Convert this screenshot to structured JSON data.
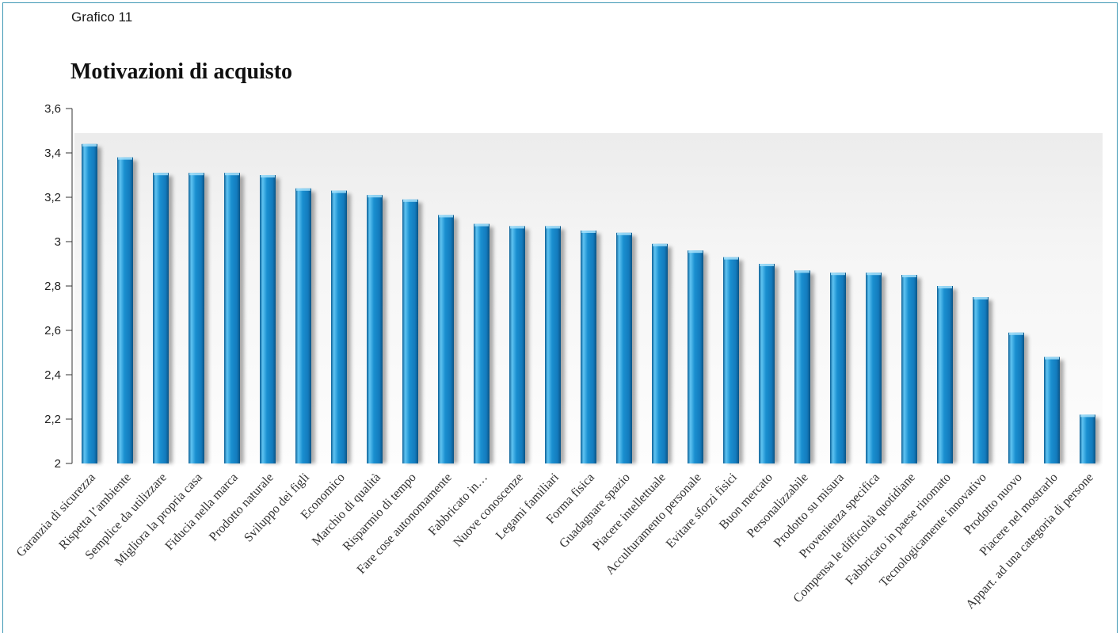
{
  "header": {
    "figure_label": "Grafico 11"
  },
  "chart_data": {
    "type": "bar",
    "title": "Motivazioni di acquisto",
    "ylim": [
      2,
      3.6
    ],
    "yticks": [
      2,
      2.2,
      2.4,
      2.6,
      2.8,
      3,
      3.2,
      3.4,
      3.6
    ],
    "ytick_labels": [
      "2",
      "2,2",
      "2,4",
      "2,6",
      "2,8",
      "3",
      "3,2",
      "3,4",
      "3,6"
    ],
    "grid": false,
    "legend": false,
    "bar_color": "#1a8fd0",
    "categories": [
      "Garanzia di sicurezza",
      "Rispetta l’ambiente",
      "Semplice da utilizzare",
      "Migliora la propria casa",
      "Fiducia nella marca",
      "Prodotto naturale",
      "Sviluppo dei figli",
      "Economico",
      "Marchio di qualità",
      "Risparmio di tempo",
      "Fare cose autonomamente",
      "Fabbricato in…",
      "Nuove conoscenze",
      "Legami familiari",
      "Forma fisica",
      "Guadagnare spazio",
      "Piacere intellettuale",
      "Acculturamento personale",
      "Evitare sforzi fisici",
      "Buon mercato",
      "Personalizzabile",
      "Prodotto su misura",
      "Provenienza specifica",
      "Compensa le difficoltà quotidiane",
      "Fabbricato in paese rinomato",
      "Tecnologicamente innovativo",
      "Prodotto nuovo",
      "Piacere nel mostrarlo",
      "Appart. ad una categoria di persone"
    ],
    "values": [
      3.44,
      3.38,
      3.31,
      3.31,
      3.31,
      3.3,
      3.24,
      3.23,
      3.21,
      3.19,
      3.12,
      3.08,
      3.07,
      3.07,
      3.05,
      3.04,
      2.99,
      2.96,
      2.93,
      2.9,
      2.87,
      2.86,
      2.86,
      2.85,
      2.8,
      2.75,
      2.59,
      2.48,
      2.22
    ]
  }
}
